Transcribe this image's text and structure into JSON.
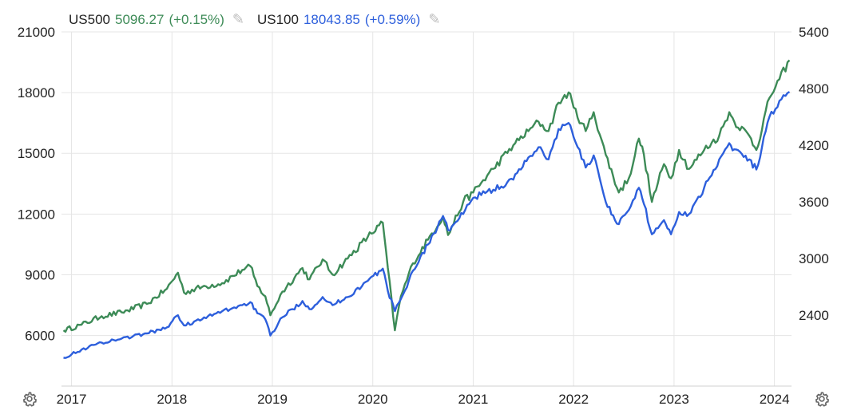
{
  "legend": {
    "us500": {
      "symbol": "US500",
      "value": "5096.27",
      "change": "(+0.15%)"
    },
    "us100": {
      "symbol": "US100",
      "value": "18043.85",
      "change": "(+0.59%)"
    }
  },
  "colors": {
    "us500": "#3d8b57",
    "us100": "#2d5fdc",
    "grid": "#e5e5e5"
  },
  "icons": {
    "edit": "pencil-icon",
    "settings": "gear-icon"
  },
  "chart_data": {
    "type": "line",
    "title": "",
    "xlabel": "",
    "x_ticks": [
      "2017",
      "2018",
      "2019",
      "2020",
      "2021",
      "2022",
      "2023",
      "2024"
    ],
    "x_range": [
      2016.9,
      2024.17
    ],
    "left_axis": {
      "series": "US100",
      "ylim": [
        3500,
        21000
      ],
      "ticks": [
        "6000",
        "9000",
        "12000",
        "15000",
        "18000",
        "21000"
      ]
    },
    "right_axis": {
      "series": "US500",
      "ylim": [
        1650,
        5400
      ],
      "ticks": [
        "2400",
        "3000",
        "3600",
        "4200",
        "4800",
        "5400"
      ]
    },
    "grid": true,
    "series": [
      {
        "name": "US500",
        "axis": "right",
        "color": "#3d8b57",
        "points": [
          [
            2016.92,
            2240
          ],
          [
            2017.1,
            2300
          ],
          [
            2017.3,
            2390
          ],
          [
            2017.5,
            2430
          ],
          [
            2017.75,
            2520
          ],
          [
            2017.95,
            2680
          ],
          [
            2018.06,
            2850
          ],
          [
            2018.12,
            2640
          ],
          [
            2018.3,
            2700
          ],
          [
            2018.5,
            2740
          ],
          [
            2018.7,
            2880
          ],
          [
            2018.78,
            2920
          ],
          [
            2018.85,
            2710
          ],
          [
            2018.93,
            2600
          ],
          [
            2018.98,
            2400
          ],
          [
            2019.1,
            2650
          ],
          [
            2019.3,
            2900
          ],
          [
            2019.37,
            2780
          ],
          [
            2019.5,
            2990
          ],
          [
            2019.6,
            2830
          ],
          [
            2019.75,
            3000
          ],
          [
            2019.95,
            3230
          ],
          [
            2020.1,
            3380
          ],
          [
            2020.15,
            2900
          ],
          [
            2020.22,
            2240
          ],
          [
            2020.28,
            2600
          ],
          [
            2020.4,
            2950
          ],
          [
            2020.55,
            3200
          ],
          [
            2020.7,
            3450
          ],
          [
            2020.75,
            3250
          ],
          [
            2020.9,
            3600
          ],
          [
            2021.0,
            3700
          ],
          [
            2021.2,
            3950
          ],
          [
            2021.4,
            4200
          ],
          [
            2021.55,
            4350
          ],
          [
            2021.65,
            4450
          ],
          [
            2021.75,
            4350
          ],
          [
            2021.85,
            4650
          ],
          [
            2021.95,
            4760
          ],
          [
            2022.0,
            4600
          ],
          [
            2022.12,
            4350
          ],
          [
            2022.2,
            4550
          ],
          [
            2022.32,
            4100
          ],
          [
            2022.45,
            3700
          ],
          [
            2022.55,
            3850
          ],
          [
            2022.65,
            4270
          ],
          [
            2022.7,
            4100
          ],
          [
            2022.78,
            3600
          ],
          [
            2022.9,
            4000
          ],
          [
            2022.97,
            3850
          ],
          [
            2023.05,
            4150
          ],
          [
            2023.15,
            3950
          ],
          [
            2023.3,
            4150
          ],
          [
            2023.45,
            4300
          ],
          [
            2023.55,
            4550
          ],
          [
            2023.6,
            4450
          ],
          [
            2023.75,
            4300
          ],
          [
            2023.82,
            4150
          ],
          [
            2023.95,
            4700
          ],
          [
            2024.05,
            4900
          ],
          [
            2024.15,
            5100
          ]
        ]
      },
      {
        "name": "US100",
        "axis": "left",
        "color": "#2d5fdc",
        "points": [
          [
            2016.92,
            4900
          ],
          [
            2017.1,
            5300
          ],
          [
            2017.3,
            5650
          ],
          [
            2017.5,
            5850
          ],
          [
            2017.75,
            6100
          ],
          [
            2017.95,
            6400
          ],
          [
            2018.06,
            7000
          ],
          [
            2018.12,
            6500
          ],
          [
            2018.3,
            6800
          ],
          [
            2018.5,
            7200
          ],
          [
            2018.7,
            7500
          ],
          [
            2018.78,
            7650
          ],
          [
            2018.85,
            7100
          ],
          [
            2018.93,
            6800
          ],
          [
            2018.98,
            6000
          ],
          [
            2019.1,
            6900
          ],
          [
            2019.3,
            7700
          ],
          [
            2019.37,
            7300
          ],
          [
            2019.5,
            7900
          ],
          [
            2019.6,
            7500
          ],
          [
            2019.75,
            7900
          ],
          [
            2019.95,
            8700
          ],
          [
            2020.1,
            9300
          ],
          [
            2020.15,
            8200
          ],
          [
            2020.22,
            7200
          ],
          [
            2020.28,
            7800
          ],
          [
            2020.4,
            9200
          ],
          [
            2020.55,
            10500
          ],
          [
            2020.7,
            11900
          ],
          [
            2020.75,
            11200
          ],
          [
            2020.9,
            12000
          ],
          [
            2021.0,
            12800
          ],
          [
            2021.2,
            13200
          ],
          [
            2021.4,
            13700
          ],
          [
            2021.55,
            14800
          ],
          [
            2021.65,
            15300
          ],
          [
            2021.75,
            14700
          ],
          [
            2021.85,
            16200
          ],
          [
            2021.95,
            16500
          ],
          [
            2022.0,
            15800
          ],
          [
            2022.12,
            14300
          ],
          [
            2022.2,
            14900
          ],
          [
            2022.32,
            12600
          ],
          [
            2022.45,
            11500
          ],
          [
            2022.55,
            12200
          ],
          [
            2022.65,
            13300
          ],
          [
            2022.7,
            12500
          ],
          [
            2022.78,
            11000
          ],
          [
            2022.9,
            11700
          ],
          [
            2022.97,
            11000
          ],
          [
            2023.05,
            12100
          ],
          [
            2023.15,
            12000
          ],
          [
            2023.3,
            13300
          ],
          [
            2023.45,
            14700
          ],
          [
            2023.55,
            15500
          ],
          [
            2023.6,
            15200
          ],
          [
            2023.75,
            14700
          ],
          [
            2023.82,
            14200
          ],
          [
            2023.95,
            16800
          ],
          [
            2024.05,
            17600
          ],
          [
            2024.15,
            18040
          ]
        ]
      }
    ]
  }
}
